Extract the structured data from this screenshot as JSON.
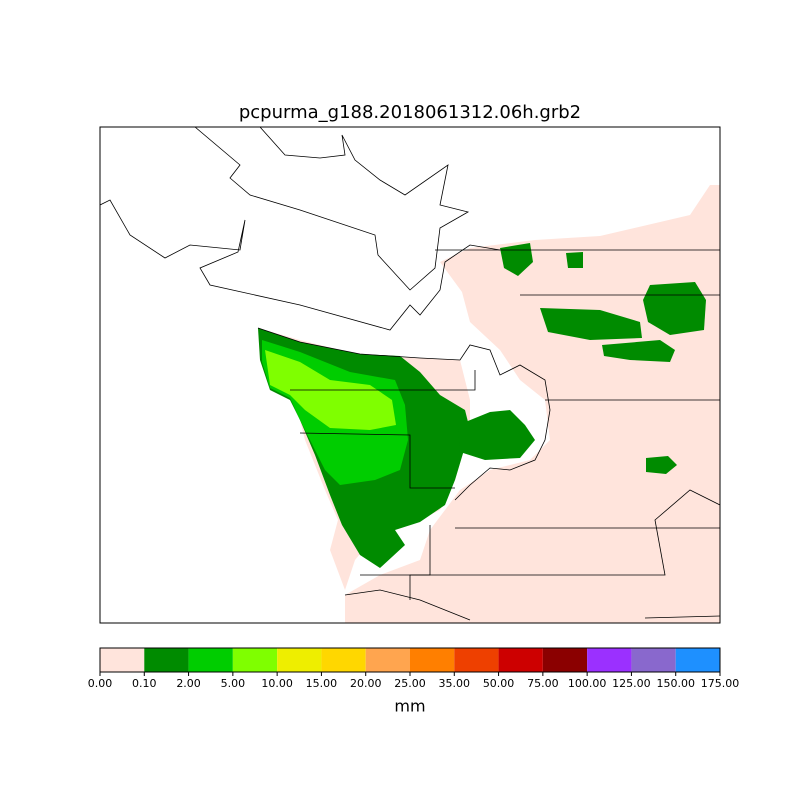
{
  "title": "pcpurma_g188.2018061312.06h.grb2",
  "colorbar": {
    "label": "mm",
    "ticks": [
      {
        "value": 0,
        "label": "0.00"
      },
      {
        "value": 0.1,
        "label": "0.10"
      },
      {
        "value": 2,
        "label": "2.00"
      },
      {
        "value": 5,
        "label": "5.00"
      },
      {
        "value": 10,
        "label": "10.00"
      },
      {
        "value": 15,
        "label": "15.00"
      },
      {
        "value": 20,
        "label": "20.00"
      },
      {
        "value": 25,
        "label": "25.00"
      },
      {
        "value": 35,
        "label": "35.00"
      },
      {
        "value": 50,
        "label": "50.00"
      },
      {
        "value": 75,
        "label": "75.00"
      },
      {
        "value": 100,
        "label": "100.00"
      },
      {
        "value": 125,
        "label": "125.00"
      },
      {
        "value": 150,
        "label": "150.00"
      },
      {
        "value": 175,
        "label": "175.00"
      }
    ],
    "colors": [
      "#ffe4dc",
      "#008b00",
      "#00cd00",
      "#7fff00",
      "#eeee00",
      "#ffd700",
      "#ffa54f",
      "#ff7f00",
      "#ee4000",
      "#cd0000",
      "#8b0000",
      "#9b30ff",
      "#8968cd",
      "#1e90ff"
    ]
  }
}
